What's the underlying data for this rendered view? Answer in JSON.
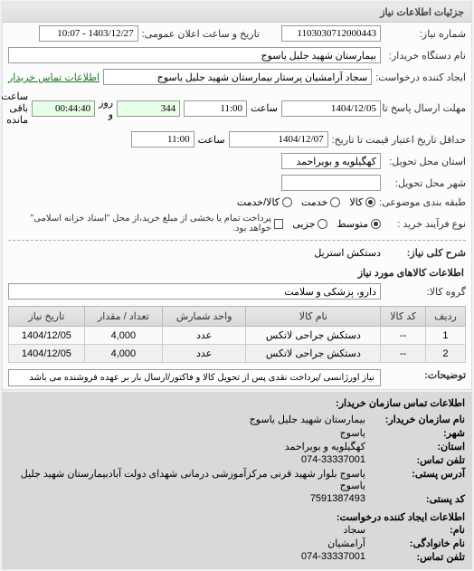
{
  "panel_title": "جزئیات اطلاعات نیاز",
  "need_no": {
    "label": "شماره نیاز:",
    "value": "1103030712000443"
  },
  "announce": {
    "label": "تاریخ و ساعت اعلان عمومی:",
    "value": "1403/12/27 - 10:07"
  },
  "device_name": {
    "label": "نام دستگاه خریدار:",
    "value": "بیمارستان شهید جلیل یاسوج"
  },
  "requester": {
    "label": "ایجاد کننده درخواست:",
    "value": "سجاد آرامشیان پرستار بیمارستان شهید جلیل یاسوج",
    "link": "اطلاعات تماس خریدار"
  },
  "deadline_send": {
    "label": "مهلت ارسال پاسخ تا تاریخ:",
    "date": "1404/12/05",
    "time_label": "ساعت",
    "time": "11:00",
    "days": "344",
    "days_label": "روز و",
    "remaining": "00:44:40",
    "remaining_label": "ساعت باقی مانده"
  },
  "min_validity": {
    "label": "حداقل تاریخ اعتبار قیمت تا تاریخ:",
    "date": "1404/12/07",
    "time_label": "ساعت",
    "time": "11:00"
  },
  "province": {
    "label": "استان محل تحویل:",
    "value": "کهگیلویه و بویراحمد"
  },
  "city": {
    "label": "شهر محل تحویل:",
    "value": ""
  },
  "category": {
    "label": "طبقه بندی موضوعی:",
    "options": [
      {
        "label": "کالا",
        "checked": true
      },
      {
        "label": "خدمت",
        "checked": false
      },
      {
        "label": "کالا/خدمت",
        "checked": false
      }
    ]
  },
  "process": {
    "label": "نوع فرآیند خرید :",
    "options": [
      {
        "label": "متوسط",
        "checked": true
      },
      {
        "label": "جزیی",
        "checked": false
      }
    ],
    "pay_check_label": "پرداخت تمام یا بخشی از مبلغ خرید،از محل \"اسناد خزانه اسلامی\" خواهد بود."
  },
  "need_title": {
    "label": "شرح کلی نیاز:",
    "value": "دستکش استریل"
  },
  "items_title": "اطلاعات کالاهای مورد نیاز",
  "goods_group": {
    "label": "گروه کالا:",
    "value": "دارو، پزشکی و سلامت"
  },
  "table": {
    "cols": [
      "ردیف",
      "کد کالا",
      "نام کالا",
      "واحد شمارش",
      "تعداد / مقدار",
      "تاریخ نیاز"
    ],
    "rows": [
      [
        "1",
        "--",
        "دستکش جراحی لاتکس",
        "عدد",
        "4,000",
        "1404/12/05"
      ],
      [
        "2",
        "--",
        "دستکش جراحی لاتکس",
        "عدد",
        "4,000",
        "1404/12/05"
      ]
    ]
  },
  "desc": {
    "label": "توضیحات:",
    "text": "نیاز اورژانسی /پرداخت نقدی پس از تحویل کالا و فاکتور/ارسال بار بر عهده فروشنده می باشد"
  },
  "contact": {
    "header": "اطلاعات تماس سازمان خریدار:",
    "org": {
      "label": "نام سازمان خریدار:",
      "value": "بیمارستان شهید جلیل یاسوج"
    },
    "city": {
      "label": "شهر:",
      "value": "یاسوج"
    },
    "province": {
      "label": "استان:",
      "value": "کهگیلویه و بویراحمد"
    },
    "phone": {
      "label": "تلفن تماس:",
      "value": "074-33337001"
    },
    "address": {
      "label": "آدرس پستی:",
      "value": "یاسوج بلوار شهید قرنی مرکزآموزشی درمانی شهدای دولت آبادبیمارستان شهید جلیل یاسوج"
    },
    "postal": {
      "label": "کد پستی:",
      "value": "7591387493"
    },
    "sub_header": "اطلاعات ایجاد کننده درخواست:",
    "name": {
      "label": "نام:",
      "value": "سجاد"
    },
    "family": {
      "label": "نام خانوادگی:",
      "value": "آرامشیان"
    },
    "phone2": {
      "label": "تلفن تماس:",
      "value": "074-33337001"
    }
  }
}
